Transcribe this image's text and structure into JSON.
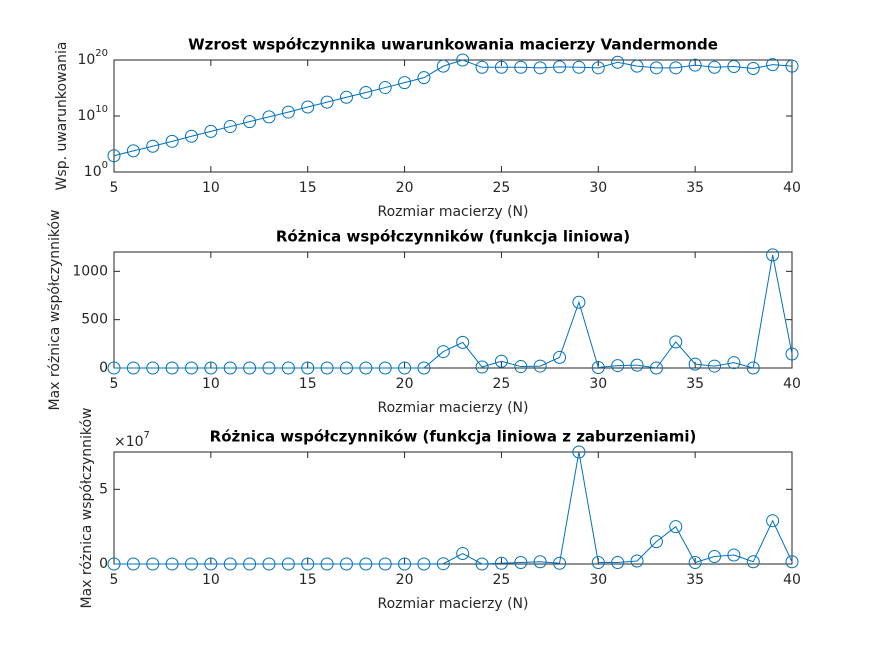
{
  "chart_data": [
    {
      "type": "line",
      "title": "Wzrost współczynnika uwarunkowania macierzy Vandermonde",
      "xlabel": "Rozmiar macierzy (N)",
      "ylabel": "Wsp. uwarunkowania",
      "x": [
        5,
        6,
        7,
        8,
        9,
        10,
        11,
        12,
        13,
        14,
        15,
        16,
        17,
        18,
        19,
        20,
        21,
        22,
        23,
        24,
        25,
        26,
        27,
        28,
        29,
        30,
        31,
        32,
        33,
        34,
        35,
        36,
        37,
        38,
        39,
        40
      ],
      "series": [
        {
          "color": "#0072bd",
          "values": [
            800,
            6000,
            40000,
            300000,
            2400000,
            18000000,
            130000000,
            1000000000,
            7000000000,
            50000000000,
            400000000000,
            3000000000000,
            22000000000000,
            160000000000000,
            1200000000000000,
            9000000000000000,
            70000000000000000,
            8e+18,
            1e+20,
            5e+18,
            5e+18,
            5e+18,
            4e+18,
            6e+18,
            5e+18,
            4e+18,
            4e+19,
            8e+18,
            4e+18,
            4e+18,
            1.2e+19,
            5e+18,
            7e+18,
            3e+18,
            1.5e+19,
            8e+18
          ]
        }
      ],
      "xlim": [
        5,
        40
      ],
      "xticks": [
        5,
        10,
        15,
        20,
        25,
        30,
        35,
        40
      ],
      "yscale": "log",
      "ylim": [
        1,
        1e+20
      ],
      "yticks": [
        {
          "value": 1,
          "label": "10^0"
        },
        {
          "value": 10000000000,
          "label": "10^10"
        },
        {
          "value": 1e+20,
          "label": "10^20"
        }
      ],
      "marker": "circle"
    },
    {
      "type": "line",
      "title": "Różnica współczynników (funkcja liniowa)",
      "xlabel": "Rozmiar macierzy (N)",
      "ylabel": "Max różnica współczynników",
      "x": [
        5,
        6,
        7,
        8,
        9,
        10,
        11,
        12,
        13,
        14,
        15,
        16,
        17,
        18,
        19,
        20,
        21,
        22,
        23,
        24,
        25,
        26,
        27,
        28,
        29,
        30,
        31,
        32,
        33,
        34,
        35,
        36,
        37,
        38,
        39,
        40
      ],
      "series": [
        {
          "color": "#0072bd",
          "values": [
            0,
            0,
            0,
            0,
            0,
            0,
            0,
            0,
            0,
            0,
            0,
            0,
            0,
            0,
            0,
            0,
            0,
            170,
            265,
            10,
            70,
            15,
            20,
            110,
            680,
            5,
            25,
            30,
            0,
            270,
            40,
            20,
            55,
            0,
            1170,
            145
          ]
        }
      ],
      "xlim": [
        5,
        40
      ],
      "xticks": [
        5,
        10,
        15,
        20,
        25,
        30,
        35,
        40
      ],
      "yscale": "linear",
      "ylim": [
        0,
        1200
      ],
      "yticks": [
        0,
        500,
        1000
      ],
      "marker": "circle"
    },
    {
      "type": "line",
      "title": "Różnica współczynników (funkcja liniowa z zaburzeniami)",
      "xlabel": "Rozmiar macierzy (N)",
      "ylabel": "Max różnica współczynników",
      "x": [
        5,
        6,
        7,
        8,
        9,
        10,
        11,
        12,
        13,
        14,
        15,
        16,
        17,
        18,
        19,
        20,
        21,
        22,
        23,
        24,
        25,
        26,
        27,
        28,
        29,
        30,
        31,
        32,
        33,
        34,
        35,
        36,
        37,
        38,
        39,
        40
      ],
      "series": [
        {
          "color": "#0072bd",
          "values": [
            0,
            0,
            0,
            0,
            0,
            0,
            0,
            0,
            0,
            0,
            0,
            0,
            0,
            0,
            0,
            0,
            0,
            200000,
            7000000,
            0,
            500000,
            1000000,
            1500000,
            500000,
            75000000,
            1000000,
            1000000,
            2000000,
            15000000,
            25000000,
            1000000,
            5000000,
            6000000,
            1500000,
            29000000,
            1500000
          ]
        }
      ],
      "xlim": [
        5,
        40
      ],
      "xticks": [
        5,
        10,
        15,
        20,
        25,
        30,
        35,
        40
      ],
      "yscale": "linear",
      "ylim": [
        0,
        75000000
      ],
      "yticks": [
        0,
        {
          "value": 50000000,
          "label": "5"
        }
      ],
      "y_exponent_label": "×10^7",
      "marker": "circle"
    }
  ]
}
